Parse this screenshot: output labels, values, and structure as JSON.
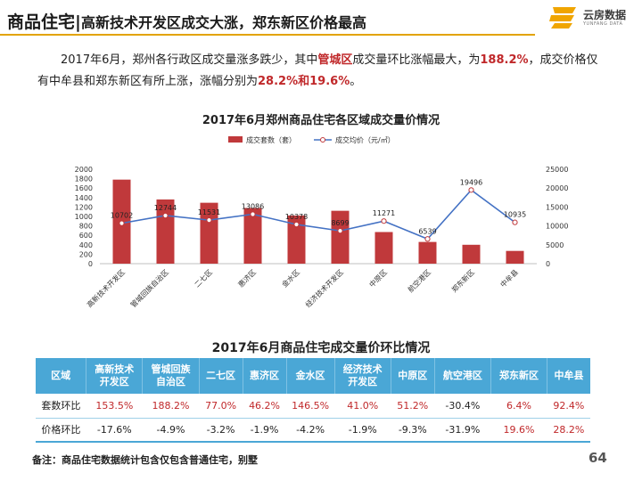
{
  "header": {
    "title_main": "商品住宅",
    "separator": "|",
    "title_sub": "高新技术开发区成交大涨，郑东新区价格最高"
  },
  "logo": {
    "name": "云房数据",
    "sub": "YUNFANG DATA"
  },
  "paragraph": {
    "p1": "2017年6月，郑州各行政区成交量涨多跌少，其中",
    "hl1": "管城区",
    "p2": "成交量环比涨幅最大，为",
    "hl2": "188.2%",
    "p3": "，成交价格仅有中牟县和郑东新区有所上涨，涨幅分别为",
    "hl3": "28.2%和19.6%",
    "p4": "。"
  },
  "chart_data": {
    "type": "bar+line",
    "title": "2017年6月郑州商品住宅各区域成交量价情况",
    "categories": [
      "高新技术开发区",
      "管城回族自治区",
      "二七区",
      "惠济区",
      "金水区",
      "经济技术开发区",
      "中原区",
      "航空港区",
      "郑东新区",
      "中牟县"
    ],
    "series": [
      {
        "name": "成交套数（套）",
        "type": "bar",
        "axis": "left",
        "color": "#c0393b",
        "values": [
          1780,
          1360,
          1290,
          1180,
          1020,
          1120,
          670,
          460,
          400,
          270
        ]
      },
      {
        "name": "成交均价（元/㎡）",
        "type": "line",
        "axis": "right",
        "color": "#4472c4",
        "values": [
          10702,
          12744,
          11531,
          13086,
          10378,
          8699,
          11271,
          6539,
          19496,
          10935
        ],
        "labels": [
          "10702",
          "12744",
          "11531",
          "13086",
          "10378",
          "8699",
          "11271",
          "6539",
          "19496",
          "10935"
        ]
      }
    ],
    "y_left": {
      "min": 0,
      "max": 2000,
      "ticks": [
        "0",
        "200",
        "400",
        "600",
        "800",
        "1000",
        "1200",
        "1400",
        "1600",
        "1800",
        "2000"
      ]
    },
    "y_right": {
      "min": 0,
      "max": 25000,
      "ticks": [
        "0",
        "5000",
        "10000",
        "15000",
        "20000",
        "25000"
      ]
    },
    "legend_position": "top"
  },
  "table": {
    "title": "2017年6月商品住宅成交量价环比情况",
    "headers": [
      "区域",
      "高新技术\n开发区",
      "管城回族\n自治区",
      "二七区",
      "惠济区",
      "金水区",
      "经济技术\n开发区",
      "中原区",
      "航空港区",
      "郑东新区",
      "中牟县"
    ],
    "rows": [
      {
        "label": "套数环比",
        "cells": [
          "153.5%",
          "188.2%",
          "77.0%",
          "46.2%",
          "146.5%",
          "41.0%",
          "51.2%",
          "-30.4%",
          "6.4%",
          "92.4%"
        ],
        "red": [
          true,
          true,
          true,
          true,
          true,
          true,
          true,
          false,
          true,
          true
        ]
      },
      {
        "label": "价格环比",
        "cells": [
          "-17.6%",
          "-4.9%",
          "-3.2%",
          "-1.9%",
          "-4.2%",
          "-1.9%",
          "-9.3%",
          "-31.9%",
          "19.6%",
          "28.2%"
        ],
        "red": [
          false,
          false,
          false,
          false,
          false,
          false,
          false,
          false,
          true,
          true
        ]
      }
    ]
  },
  "footer": {
    "note": "备注：商品住宅数据统计包含仅包含普通住宅，别墅",
    "page": "64"
  }
}
